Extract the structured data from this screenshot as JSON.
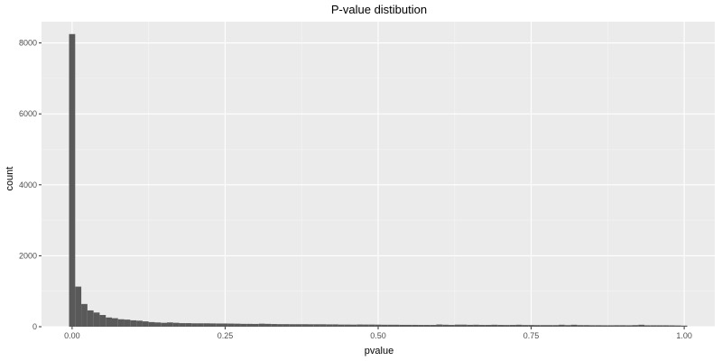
{
  "chart_data": {
    "type": "bar",
    "title": "P-value distibution",
    "xlabel": "pvalue",
    "ylabel": "count",
    "xlim": [
      -0.05,
      1.05
    ],
    "ylim": [
      0,
      8600
    ],
    "x_ticks": [
      0.0,
      0.25,
      0.5,
      0.75,
      1.0
    ],
    "x_tick_labels": [
      "0.00",
      "0.25",
      "0.50",
      "0.75",
      "1.00"
    ],
    "y_ticks": [
      0,
      2000,
      4000,
      6000,
      8000
    ],
    "y_tick_labels": [
      "0",
      "2000",
      "4000",
      "6000",
      "8000"
    ],
    "grid": true,
    "legend": "none",
    "bin_width": 0.01,
    "x": [
      0.0,
      0.01,
      0.02,
      0.03,
      0.04,
      0.05,
      0.06,
      0.07,
      0.08,
      0.09,
      0.1,
      0.11,
      0.12,
      0.13,
      0.14,
      0.15,
      0.16,
      0.17,
      0.18,
      0.19,
      0.2,
      0.21,
      0.22,
      0.23,
      0.24,
      0.25,
      0.26,
      0.27,
      0.28,
      0.29,
      0.3,
      0.31,
      0.32,
      0.33,
      0.34,
      0.35,
      0.36,
      0.37,
      0.38,
      0.39,
      0.4,
      0.41,
      0.42,
      0.43,
      0.44,
      0.45,
      0.46,
      0.47,
      0.48,
      0.49,
      0.5,
      0.51,
      0.52,
      0.53,
      0.54,
      0.55,
      0.56,
      0.57,
      0.58,
      0.59,
      0.6,
      0.61,
      0.62,
      0.63,
      0.64,
      0.65,
      0.66,
      0.67,
      0.68,
      0.69,
      0.7,
      0.71,
      0.72,
      0.73,
      0.74,
      0.75,
      0.76,
      0.77,
      0.78,
      0.79,
      0.8,
      0.81,
      0.82,
      0.83,
      0.84,
      0.85,
      0.86,
      0.87,
      0.88,
      0.89,
      0.9,
      0.91,
      0.92,
      0.93,
      0.94,
      0.95,
      0.96,
      0.97,
      0.98,
      0.99,
      1.0
    ],
    "values": [
      8250,
      1130,
      640,
      460,
      400,
      330,
      260,
      240,
      210,
      200,
      180,
      170,
      150,
      130,
      120,
      110,
      120,
      110,
      100,
      100,
      95,
      95,
      95,
      92,
      90,
      90,
      88,
      85,
      80,
      80,
      78,
      85,
      80,
      75,
      72,
      72,
      70,
      70,
      70,
      68,
      68,
      68,
      65,
      65,
      60,
      60,
      58,
      62,
      60,
      60,
      58,
      55,
      55,
      55,
      52,
      52,
      52,
      50,
      50,
      50,
      62,
      55,
      50,
      58,
      58,
      52,
      55,
      50,
      50,
      55,
      50,
      48,
      50,
      55,
      48,
      48,
      45,
      45,
      45,
      45,
      55,
      45,
      55,
      45,
      45,
      42,
      42,
      40,
      40,
      42,
      42,
      40,
      45,
      55,
      40,
      40,
      40,
      40,
      38,
      35,
      30
    ],
    "colors": {
      "bar": "#595959",
      "panel": "#ebebeb",
      "grid_major": "#ffffff",
      "grid_minor": "#f5f5f5"
    }
  }
}
